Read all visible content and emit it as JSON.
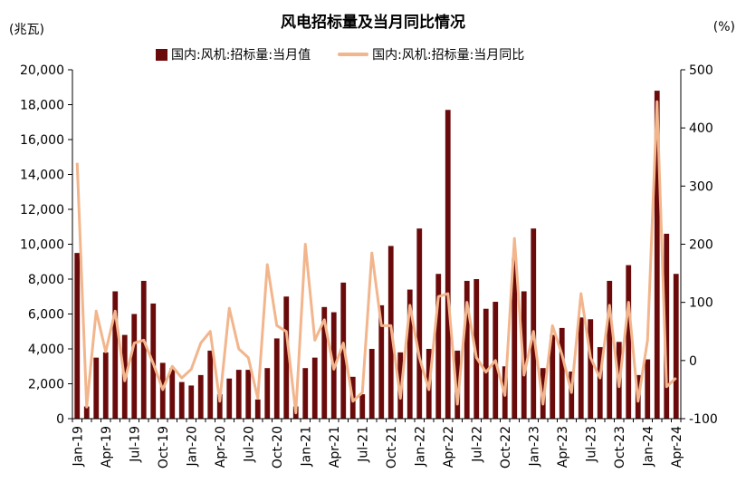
{
  "chart_data": {
    "type": "bar+line",
    "title": "风电招标量及当月同比情况",
    "left_unit": "(兆瓦)",
    "right_unit": "(%)",
    "legend": [
      "国内:风机:招标量:当月值",
      "国内:风机:招标量:当月同比"
    ],
    "colors": {
      "bar": "#6b0a0a",
      "line": "#f2b58c",
      "axis": "#000000"
    },
    "left_axis": {
      "min": 0,
      "max": 20000,
      "step": 2000
    },
    "right_axis": {
      "min": -100,
      "max": 500,
      "step": 100
    },
    "categories": [
      "Jan-19",
      "Feb-19",
      "Mar-19",
      "Apr-19",
      "May-19",
      "Jun-19",
      "Jul-19",
      "Aug-19",
      "Sep-19",
      "Oct-19",
      "Nov-19",
      "Dec-19",
      "Jan-20",
      "Feb-20",
      "Mar-20",
      "Apr-20",
      "May-20",
      "Jun-20",
      "Jul-20",
      "Aug-20",
      "Sep-20",
      "Oct-20",
      "Nov-20",
      "Dec-20",
      "Jan-21",
      "Feb-21",
      "Mar-21",
      "Apr-21",
      "May-21",
      "Jun-21",
      "Jul-21",
      "Aug-21",
      "Sep-21",
      "Oct-21",
      "Nov-21",
      "Dec-21",
      "Jan-22",
      "Feb-22",
      "Mar-22",
      "Apr-22",
      "May-22",
      "Jun-22",
      "Jul-22",
      "Aug-22",
      "Sep-22",
      "Oct-22",
      "Nov-22",
      "Dec-22",
      "Jan-23",
      "Feb-23",
      "Mar-23",
      "Apr-23",
      "May-23",
      "Jun-23",
      "Jul-23",
      "Aug-23",
      "Sep-23",
      "Oct-23",
      "Nov-23",
      "Dec-23",
      "Jan-24",
      "Feb-24",
      "Mar-24",
      "Apr-24"
    ],
    "x_tick_labels": [
      "Jan-19",
      "Apr-19",
      "Jul-19",
      "Oct-19",
      "Jan-20",
      "Apr-20",
      "Jul-20",
      "Oct-20",
      "Jan-21",
      "Apr-21",
      "Jul-21",
      "Oct-21",
      "Jan-22",
      "Apr-22",
      "Jul-22",
      "Oct-22",
      "Jan-23",
      "Apr-23",
      "Jul-23",
      "Oct-23",
      "Jan-24",
      "Apr-24"
    ],
    "series": [
      {
        "name": "国内:风机:招标量:当月值",
        "type": "bar",
        "axis": "left",
        "values": [
          9500,
          700,
          3500,
          3800,
          7300,
          4800,
          6000,
          7900,
          6600,
          3200,
          2900,
          2100,
          1900,
          2500,
          3900,
          1400,
          2300,
          2800,
          2800,
          1100,
          2900,
          4600,
          7000,
          700,
          2900,
          3500,
          6400,
          6100,
          7800,
          2400,
          1400,
          4000,
          6500,
          9900,
          3800,
          7400,
          10900,
          4000,
          8300,
          17700,
          3900,
          7900,
          8000,
          6300,
          6700,
          3000,
          9200,
          7300,
          10900,
          2900,
          4800,
          5200,
          2700,
          5800,
          5700,
          4100,
          7900,
          4400,
          8800,
          2500,
          3400,
          18800,
          10600,
          8300
        ]
      },
      {
        "name": "国内:风机:招标量:当月同比",
        "type": "line",
        "axis": "right",
        "values": [
          340,
          -80,
          85,
          15,
          85,
          -35,
          30,
          35,
          -5,
          -50,
          -10,
          -30,
          -15,
          30,
          50,
          -70,
          90,
          20,
          5,
          -65,
          165,
          60,
          50,
          -90,
          200,
          35,
          70,
          -15,
          30,
          -70,
          -55,
          185,
          60,
          60,
          -65,
          95,
          5,
          -50,
          110,
          115,
          -75,
          100,
          5,
          -20,
          0,
          -60,
          210,
          -25,
          50,
          -75,
          60,
          10,
          -55,
          115,
          5,
          -30,
          95,
          -45,
          100,
          -70,
          35,
          445,
          -45,
          -30
        ]
      }
    ]
  }
}
